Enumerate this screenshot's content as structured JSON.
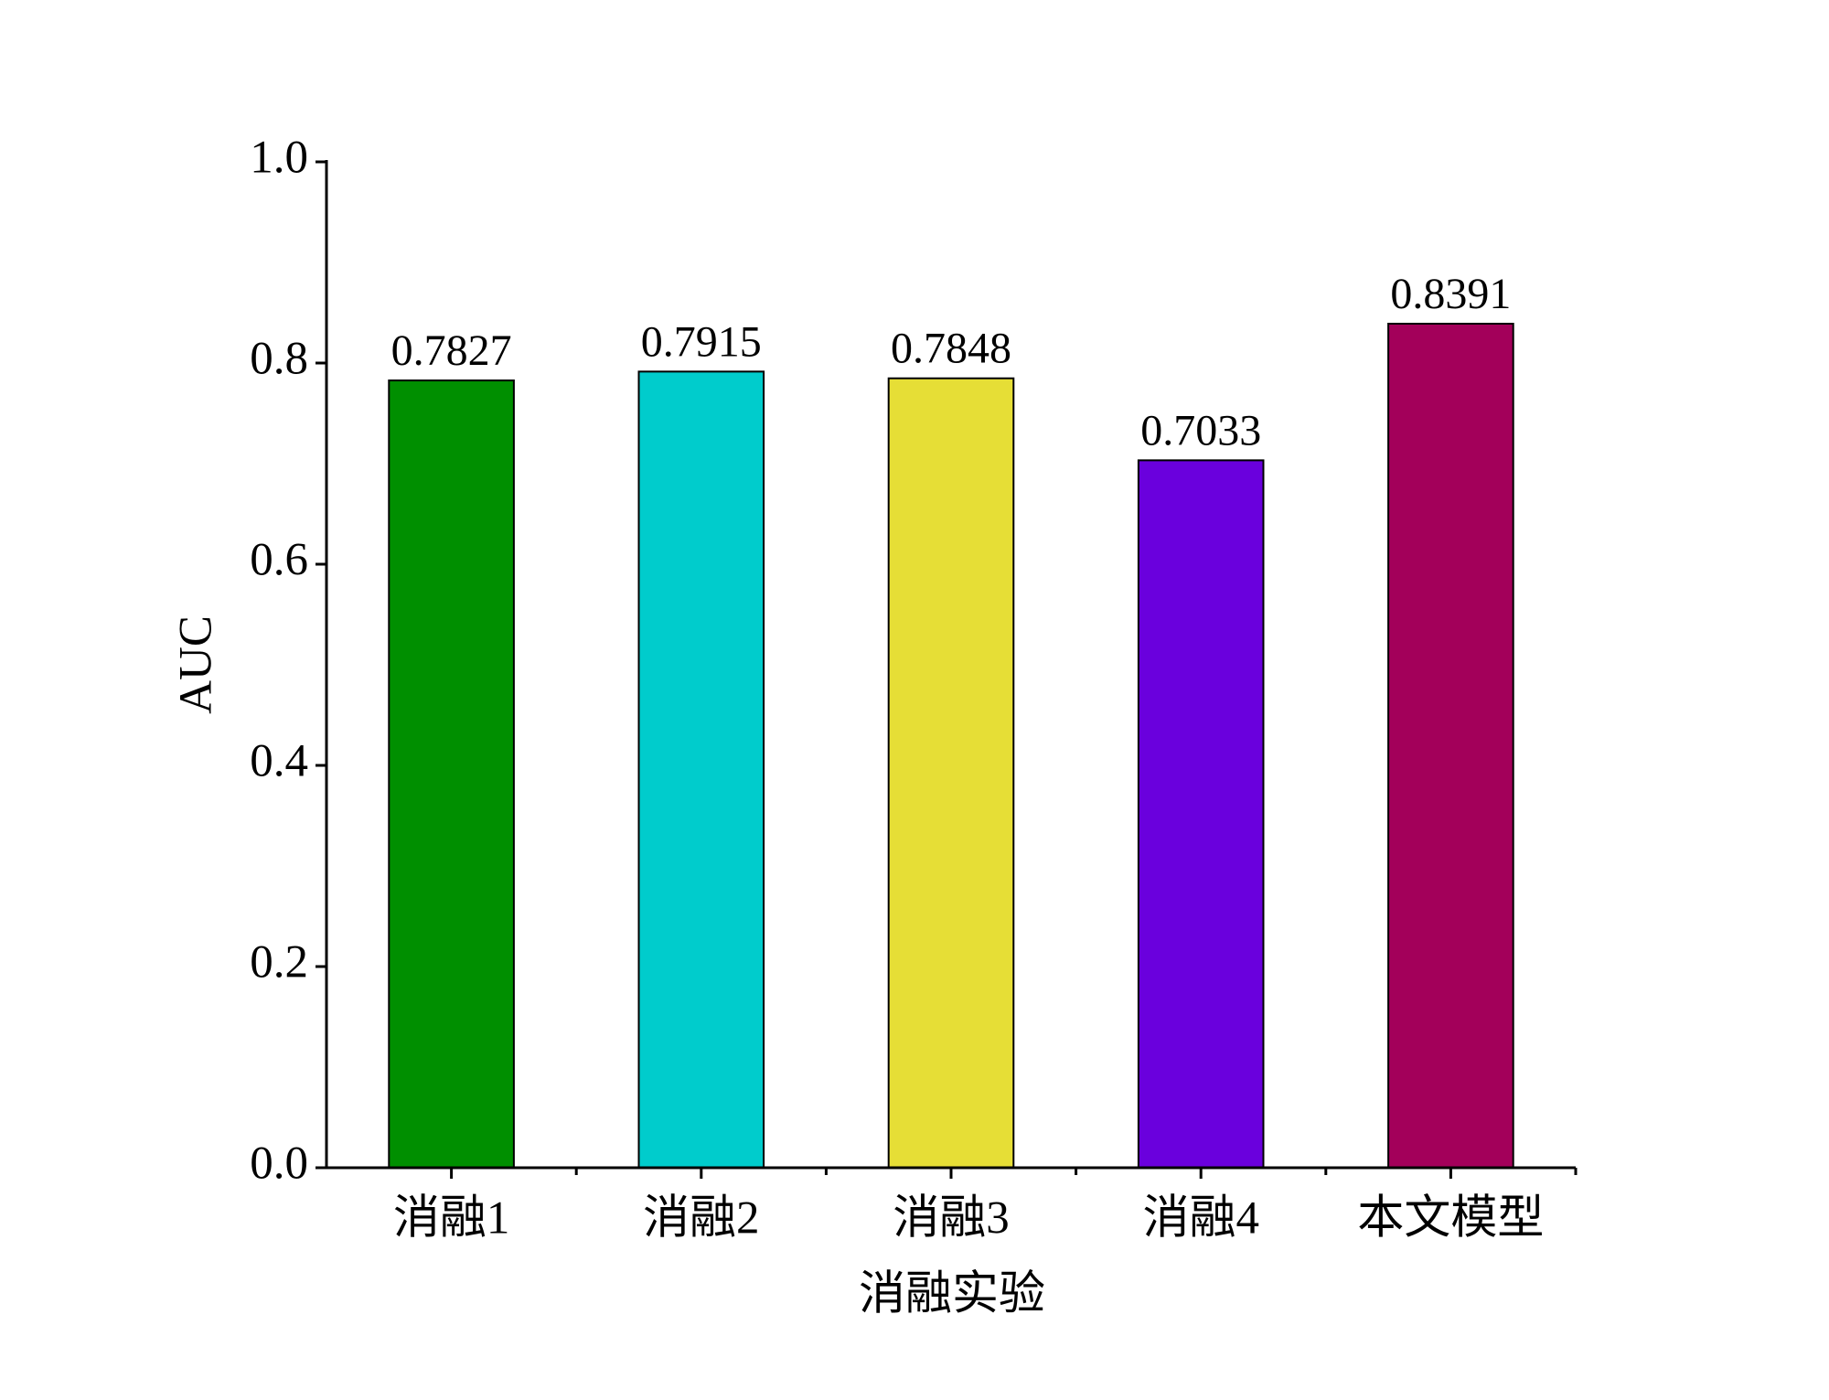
{
  "chart_data": {
    "type": "bar",
    "x_label": "消融实验",
    "y_label": "AUC",
    "categories": [
      "消融1",
      "消融2",
      "消融3",
      "消融4",
      "本文模型"
    ],
    "values": [
      0.7827,
      0.7915,
      0.7848,
      0.7033,
      0.8391
    ],
    "colors": [
      "#008f00",
      "#00cccc",
      "#e6de36",
      "#6a00dd",
      "#a3005a"
    ],
    "ylim": [
      0,
      1.0
    ],
    "yticks": [
      {
        "value": 0,
        "label": "0.0"
      },
      {
        "value": 0.2,
        "label": "0.2"
      },
      {
        "value": 0.4,
        "label": "0.4"
      },
      {
        "value": 0.6,
        "label": "0.6"
      },
      {
        "value": 0.8,
        "label": "0.8"
      },
      {
        "value": 1.0,
        "label": "1.0"
      }
    ],
    "grid": false
  }
}
